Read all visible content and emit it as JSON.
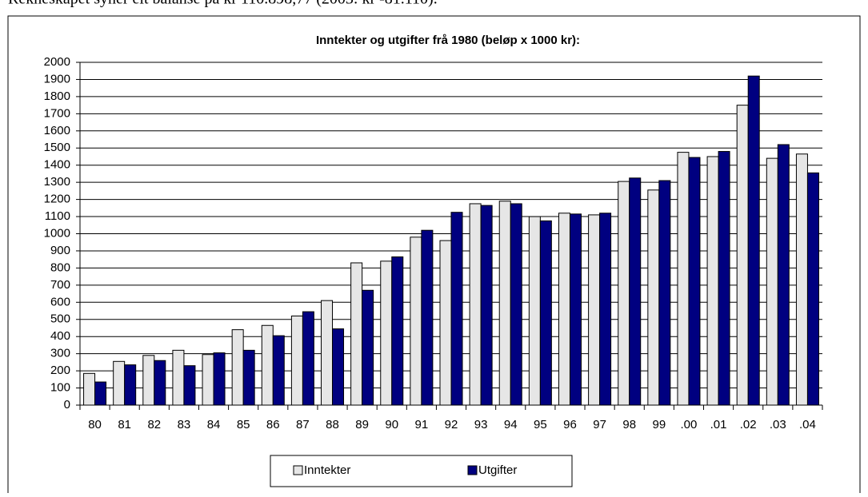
{
  "text": "Rekneskapet syner eit balanse på kr 110.898,77 (2003: kr -81.110).",
  "chart_data": {
    "type": "bar",
    "title": "Inntekter og utgifter frå 1980 (beløp x 1000 kr):",
    "categories": [
      "80",
      "81",
      "82",
      "83",
      "84",
      "85",
      "86",
      "87",
      "88",
      "89",
      "90",
      "91",
      "92",
      "93",
      "94",
      "95",
      "96",
      "97",
      "98",
      "99",
      ".00",
      ".01",
      ".02",
      ".03",
      ".04"
    ],
    "series": [
      {
        "name": "Inntekter",
        "color": "#e6e6e6",
        "values": [
          185,
          255,
          290,
          320,
          295,
          440,
          465,
          520,
          610,
          830,
          840,
          980,
          960,
          1175,
          1190,
          1100,
          1120,
          1110,
          1305,
          1255,
          1475,
          1450,
          1750,
          1440,
          1465
        ]
      },
      {
        "name": "Utgifter",
        "color": "#000080",
        "values": [
          135,
          235,
          260,
          230,
          305,
          320,
          405,
          545,
          445,
          670,
          865,
          1020,
          1125,
          1165,
          1175,
          1075,
          1115,
          1120,
          1325,
          1310,
          1445,
          1480,
          1920,
          1520,
          1355
        ]
      }
    ],
    "ylim": [
      0,
      2000
    ],
    "yticks": [
      0,
      100,
      200,
      300,
      400,
      500,
      600,
      700,
      800,
      900,
      1000,
      1100,
      1200,
      1300,
      1400,
      1500,
      1600,
      1700,
      1800,
      1900,
      2000
    ],
    "grid": true,
    "legend": "bottom"
  }
}
